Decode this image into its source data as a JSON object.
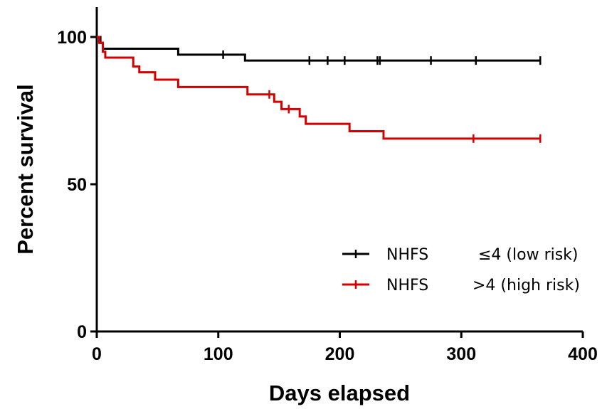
{
  "chart_data": {
    "type": "line",
    "subtype": "kaplan-meier step",
    "title": "",
    "xlabel": "Days elapsed",
    "ylabel": "Percent survival",
    "xlim": [
      0,
      400
    ],
    "ylim": [
      0,
      100
    ],
    "x_ticks": [
      "0",
      "100",
      "200",
      "300",
      "400"
    ],
    "y_ticks": [
      "0",
      "50",
      "100"
    ],
    "grid": false,
    "legend_position": "lower-right",
    "series": [
      {
        "name": "NHFS",
        "legend_suffix": "≤4 (low risk)",
        "color": "#000000",
        "steps": [
          [
            0,
            100
          ],
          [
            3,
            98
          ],
          [
            5,
            96
          ],
          [
            67,
            94
          ],
          [
            122,
            92
          ],
          [
            365,
            92
          ]
        ],
        "censored": [
          [
            104,
            94
          ],
          [
            175,
            92
          ],
          [
            190,
            92
          ],
          [
            204,
            92
          ],
          [
            231,
            92
          ],
          [
            233,
            92
          ],
          [
            275,
            92
          ],
          [
            312,
            92
          ],
          [
            365,
            92
          ]
        ]
      },
      {
        "name": "NHFS",
        "legend_suffix": ">4 (high risk)",
        "color": "#d40000",
        "steps": [
          [
            0,
            100
          ],
          [
            2,
            98
          ],
          [
            5,
            95
          ],
          [
            7,
            93
          ],
          [
            30,
            90
          ],
          [
            35,
            88
          ],
          [
            48,
            85.5
          ],
          [
            67,
            83
          ],
          [
            124,
            80.5
          ],
          [
            146,
            78
          ],
          [
            152,
            75.5
          ],
          [
            167,
            73
          ],
          [
            172,
            70.5
          ],
          [
            208,
            68
          ],
          [
            236,
            65.5
          ],
          [
            365,
            65.5
          ]
        ],
        "censored": [
          [
            142,
            80.5
          ],
          [
            158,
            75.5
          ],
          [
            310,
            65.5
          ],
          [
            365,
            65.5
          ]
        ]
      }
    ]
  }
}
